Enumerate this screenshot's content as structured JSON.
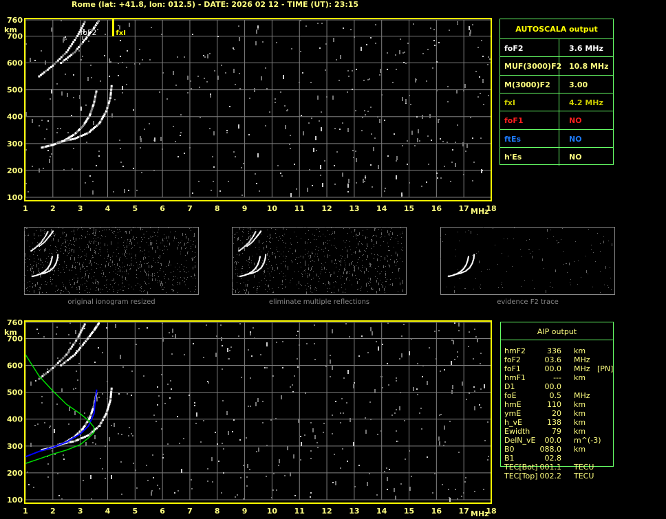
{
  "header": {
    "title": "Rome (lat: +41.8, lon: 012.5) - DATE: 2026 02 12 - TIME (UT): 23:15"
  },
  "colors": {
    "frame": "#ffff00",
    "axis_text": "#ffff80",
    "grid": "#808080",
    "table_border": "#66ff66",
    "ordinary_fit": "#0000ff",
    "profile": "#00dd00"
  },
  "chart_data": [
    {
      "type": "scatter",
      "title": "",
      "xlabel": "MHz",
      "ylabel": "km",
      "xlim": [
        1,
        18
      ],
      "ylim": [
        100,
        760
      ],
      "xticks": [
        "1",
        "2",
        "3",
        "4",
        "5",
        "6",
        "7",
        "8",
        "9",
        "10",
        "11",
        "12",
        "13",
        "14",
        "15",
        "16",
        "17",
        "18"
      ],
      "yticks": [
        "100",
        "200",
        "300",
        "400",
        "500",
        "600",
        "700",
        "760"
      ],
      "grid": true,
      "annotations": [
        {
          "label": "foF2",
          "x": 3.6
        },
        {
          "label": "fxI",
          "x": 4.2
        }
      ],
      "traces": [
        {
          "x": [
            1.6,
            2.0,
            2.4,
            2.8,
            3.1,
            3.35,
            3.5,
            3.6
          ],
          "y": [
            285,
            295,
            310,
            335,
            365,
            405,
            450,
            500
          ]
        },
        {
          "x": [
            2.2,
            2.8,
            3.3,
            3.7,
            3.95,
            4.1,
            4.15
          ],
          "y": [
            305,
            318,
            340,
            375,
            420,
            470,
            520
          ]
        },
        {
          "x": [
            1.5,
            2.0,
            2.5,
            2.9,
            3.2
          ],
          "y": [
            550,
            590,
            640,
            700,
            760
          ]
        },
        {
          "x": [
            2.3,
            2.8,
            3.2,
            3.5,
            3.7
          ],
          "y": [
            600,
            640,
            690,
            730,
            760
          ]
        }
      ]
    },
    {
      "type": "scatter",
      "title": "",
      "xlabel": "MHz",
      "ylabel": "km",
      "xlim": [
        1,
        18
      ],
      "ylim": [
        100,
        760
      ],
      "xticks": [
        "1",
        "2",
        "3",
        "4",
        "5",
        "6",
        "7",
        "8",
        "9",
        "10",
        "11",
        "12",
        "13",
        "14",
        "15",
        "16",
        "17",
        "18"
      ],
      "yticks": [
        "100",
        "200",
        "300",
        "400",
        "500",
        "600",
        "700",
        "760"
      ],
      "grid": true,
      "series": [
        {
          "x": [
            1.0,
            1.5,
            2.0,
            2.5,
            3.0,
            3.3,
            3.5,
            3.55,
            3.6
          ],
          "y": [
            260,
            280,
            295,
            315,
            345,
            375,
            420,
            470,
            510
          ]
        },
        {
          "x": [
            1.0,
            1.5,
            2.0,
            2.5,
            3.0,
            3.3,
            3.5,
            3.5,
            3.3,
            3.0,
            2.5,
            2.0,
            1.5,
            1.0
          ],
          "y": [
            235,
            252,
            270,
            285,
            305,
            330,
            350,
            370,
            395,
            420,
            455,
            505,
            560,
            640
          ]
        }
      ]
    }
  ],
  "thumbnails": [
    {
      "caption": "original ionogram resized"
    },
    {
      "caption": "eliminate multiple reflections"
    },
    {
      "caption": "evidence F2 trace"
    }
  ],
  "autoscala": {
    "title": "AUTOSCALA output",
    "rows": [
      {
        "label": "foF2",
        "value": "3.6 MHz",
        "color": "#ffffff"
      },
      {
        "label": "MUF(3000)F2",
        "value": "10.8 MHz",
        "color": "#ffff80"
      },
      {
        "label": "M(3000)F2",
        "value": "3.00",
        "color": "#ffff80"
      },
      {
        "label": "fxI",
        "value": "4.2 MHz",
        "color": "#cccc00"
      },
      {
        "label": "foF1",
        "value": "NO",
        "color": "#ff2020"
      },
      {
        "label": "ftEs",
        "value": "NO",
        "color": "#1e7cff"
      },
      {
        "label": "h'Es",
        "value": "NO",
        "color": "#ffff80"
      }
    ]
  },
  "aip": {
    "title": "AIP output",
    "rows": [
      {
        "label": "hmF2",
        "value": "336",
        "unit": "km",
        "extra": ""
      },
      {
        "label": "foF2",
        "value": "03.6",
        "unit": "MHz",
        "extra": ""
      },
      {
        "label": "foF1",
        "value": "00.0",
        "unit": "MHz",
        "extra": "[PN]"
      },
      {
        "label": "hmF1",
        "value": "---",
        "unit": "km",
        "extra": ""
      },
      {
        "label": "D1",
        "value": "00.0",
        "unit": "",
        "extra": ""
      },
      {
        "label": "foE",
        "value": "0.5",
        "unit": "MHz",
        "extra": ""
      },
      {
        "label": "hmE",
        "value": "110",
        "unit": "km",
        "extra": ""
      },
      {
        "label": "ymE",
        "value": "20",
        "unit": "km",
        "extra": ""
      },
      {
        "label": "h_vE",
        "value": "138",
        "unit": "km",
        "extra": ""
      },
      {
        "label": "Ewidth",
        "value": "79",
        "unit": "km",
        "extra": ""
      },
      {
        "label": "DelN_vE",
        "value": "00.0",
        "unit": "m^(-3)",
        "extra": ""
      },
      {
        "label": "B0",
        "value": "088.0",
        "unit": "km",
        "extra": ""
      },
      {
        "label": "B1",
        "value": "02.8",
        "unit": "",
        "extra": ""
      },
      {
        "label": "TEC[Bot]",
        "value": "001.1",
        "unit": "TECU",
        "extra": ""
      },
      {
        "label": "TEC[Top]",
        "value": "002.2",
        "unit": "TECU",
        "extra": ""
      }
    ]
  }
}
